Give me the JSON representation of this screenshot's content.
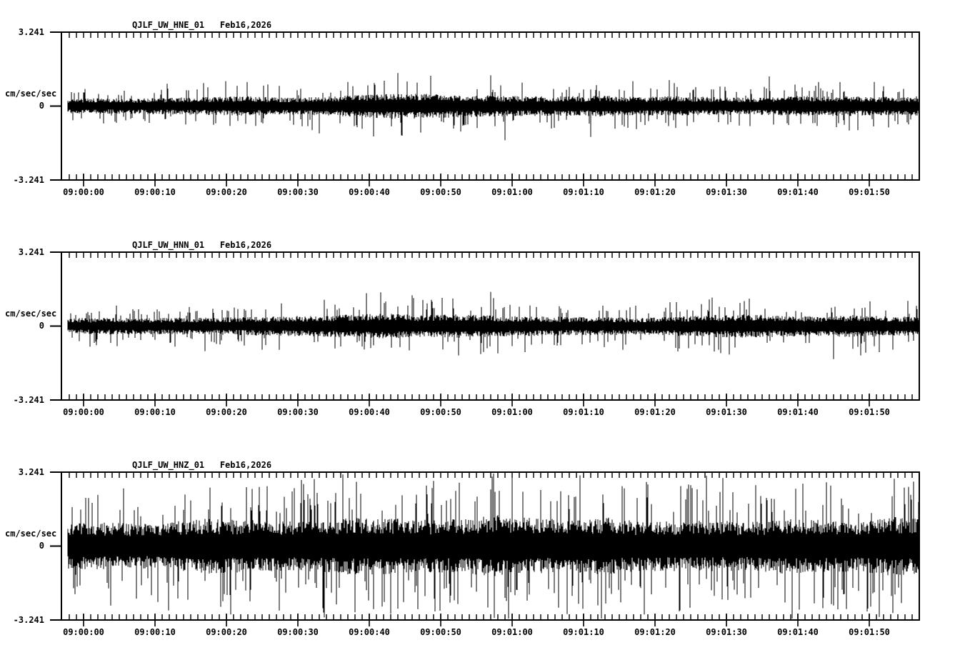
{
  "page": {
    "background": "#ffffff",
    "foreground": "#000000"
  },
  "chart_data": {
    "type": "line",
    "kind": "seismogram-multipanel",
    "date": "Feb16,2026",
    "time_window": {
      "start": "08:59:58",
      "end": "09:01:57",
      "duration_s": 119
    },
    "x_major_interval_s": 10,
    "x_minor_interval_s": 1,
    "x_tick_labels": [
      "09:00:00",
      "09:00:10",
      "09:00:20",
      "09:00:30",
      "09:00:40",
      "09:00:50",
      "09:01:00",
      "09:01:10",
      "09:01:20",
      "09:01:30",
      "09:01:40",
      "09:01:50"
    ],
    "ylim": [
      -3.241,
      3.241
    ],
    "y_tick_labels": {
      "top": "3.241",
      "zero": "0",
      "bottom": "-3.241"
    },
    "units_label": "cm/sec/sec",
    "grid": false,
    "legend": false,
    "panels": [
      {
        "station": "QJLF_UW_HNE_01",
        "title": "QJLF_UW_HNE_01   Feb16,2026",
        "seed": 11,
        "spike_rate": 0.09,
        "envelope_interval_s": 5,
        "amplitude_envelope": [
          0.69,
          0.75,
          0.75,
          0.81,
          0.88,
          0.94,
          0.81,
          0.88,
          1.06,
          1.25,
          1.19,
          1.06,
          1.0,
          0.94,
          0.94,
          1.0,
          0.88,
          0.94,
          0.88,
          0.81,
          0.94,
          1.0,
          0.94,
          0.88,
          0.94
        ],
        "spikes": [
          {
            "t": 33.0,
            "a": -1.2
          },
          {
            "t": 44.0,
            "a": 1.45
          },
          {
            "t": 44.6,
            "a": -1.3
          },
          {
            "t": 57.0,
            "a": 1.35
          },
          {
            "t": 59.0,
            "a": -1.5
          },
          {
            "t": 71.0,
            "a": -1.35
          },
          {
            "t": 96.0,
            "a": 1.3
          }
        ]
      },
      {
        "station": "QJLF_UW_HNN_01",
        "title": "QJLF_UW_HNN_01   Feb16,2026",
        "seed": 22,
        "spike_rate": 0.09,
        "envelope_interval_s": 5,
        "amplitude_envelope": [
          0.75,
          0.81,
          0.75,
          0.81,
          0.81,
          0.88,
          0.94,
          1.0,
          1.13,
          1.19,
          1.06,
          1.13,
          1.0,
          0.94,
          0.88,
          0.88,
          0.81,
          0.94,
          1.06,
          1.13,
          1.0,
          0.94,
          1.06,
          0.94,
          0.88
        ],
        "spikes": [
          {
            "t": 17.0,
            "a": -1.1
          },
          {
            "t": 46.0,
            "a": 1.35
          },
          {
            "t": 57.0,
            "a": 1.5
          },
          {
            "t": 58.0,
            "a": -1.2
          },
          {
            "t": 88.0,
            "a": 1.25
          },
          {
            "t": 105.0,
            "a": -1.45
          }
        ]
      },
      {
        "station": "QJLF_UW_HNZ_01",
        "title": "QJLF_UW_HNZ_01   Feb16,2026",
        "seed": 33,
        "spike_rate": 0.13,
        "envelope_interval_s": 5,
        "amplitude_envelope": [
          2.19,
          2.25,
          2.13,
          2.35,
          2.66,
          2.5,
          2.35,
          2.44,
          2.76,
          2.66,
          2.5,
          2.57,
          2.97,
          2.66,
          2.5,
          2.76,
          2.35,
          2.44,
          2.5,
          2.25,
          2.66,
          2.5,
          2.44,
          2.82,
          2.66
        ],
        "spikes": [
          {
            "t": 30.5,
            "a": 2.9
          },
          {
            "t": 38.0,
            "a": -2.9
          },
          {
            "t": 44.0,
            "a": -2.75
          },
          {
            "t": 57.2,
            "a": 3.05
          },
          {
            "t": 57.5,
            "a": -3.15
          },
          {
            "t": 69.5,
            "a": 3.1
          },
          {
            "t": 72.0,
            "a": -2.6
          },
          {
            "t": 78.5,
            "a": -3.0
          },
          {
            "t": 79.0,
            "a": 2.7
          },
          {
            "t": 104.0,
            "a": 2.8
          },
          {
            "t": 113.5,
            "a": 2.95
          },
          {
            "t": 114.5,
            "a": -2.5
          }
        ]
      }
    ]
  }
}
